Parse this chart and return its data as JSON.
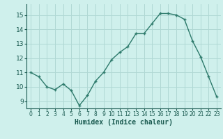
{
  "x": [
    0,
    1,
    2,
    3,
    4,
    5,
    6,
    7,
    8,
    9,
    10,
    11,
    12,
    13,
    14,
    15,
    16,
    17,
    18,
    19,
    20,
    21,
    22,
    23
  ],
  "y": [
    11.0,
    10.7,
    10.0,
    9.8,
    10.2,
    9.75,
    8.7,
    9.4,
    10.4,
    11.0,
    11.9,
    12.4,
    12.8,
    13.7,
    13.7,
    14.4,
    15.1,
    15.1,
    15.0,
    14.7,
    13.2,
    12.1,
    10.7,
    9.3
  ],
  "xlabel": "Humidex (Indice chaleur)",
  "ylim": [
    8.5,
    15.75
  ],
  "xlim": [
    -0.5,
    23.5
  ],
  "yticks": [
    9,
    10,
    11,
    12,
    13,
    14,
    15
  ],
  "xticks": [
    0,
    1,
    2,
    3,
    4,
    5,
    6,
    7,
    8,
    9,
    10,
    11,
    12,
    13,
    14,
    15,
    16,
    17,
    18,
    19,
    20,
    21,
    22,
    23
  ],
  "line_color": "#2d7a6b",
  "marker_color": "#2d7a6b",
  "bg_color": "#cff0ec",
  "grid_color": "#b0d8d4",
  "xlabel_color": "#1a5a50",
  "tick_color": "#1a5a50"
}
